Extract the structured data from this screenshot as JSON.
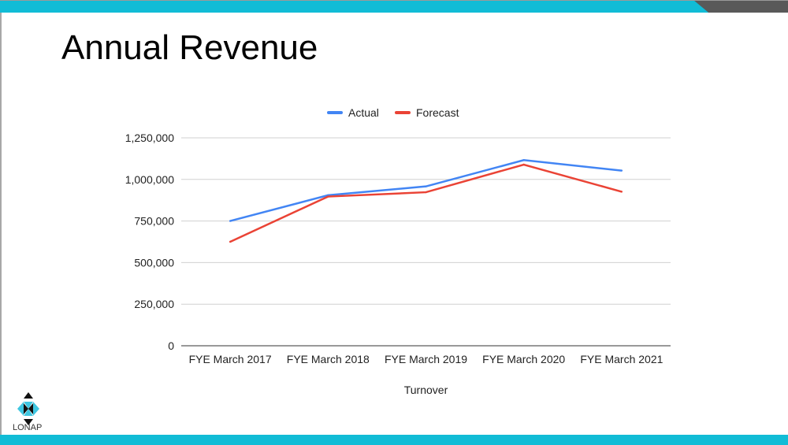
{
  "slide": {
    "title": "Annual Revenue",
    "logo_text": "LONAP"
  },
  "colors": {
    "accent_bar": "#11bcd6",
    "corner": "#595959",
    "actual": "#4285f4",
    "forecast": "#ea4335"
  },
  "chart_data": {
    "type": "line",
    "title": "",
    "xlabel": "Turnover",
    "ylabel": "",
    "categories": [
      "FYE March 2017",
      "FYE March 2018",
      "FYE March 2019",
      "FYE March 2020",
      "FYE March 2021"
    ],
    "series": [
      {
        "name": "Actual",
        "values": [
          750000,
          905000,
          958000,
          1116000,
          1053000
        ]
      },
      {
        "name": "Forecast",
        "values": [
          625000,
          897000,
          923000,
          1089000,
          926000
        ]
      }
    ],
    "ylim": [
      0,
      1250000
    ],
    "yticks": [
      0,
      250000,
      500000,
      750000,
      1000000,
      1250000
    ],
    "ytick_labels": [
      "0",
      "250,000",
      "500,000",
      "750,000",
      "1,000,000",
      "1,250,000"
    ],
    "grid": true,
    "legend": "top"
  }
}
